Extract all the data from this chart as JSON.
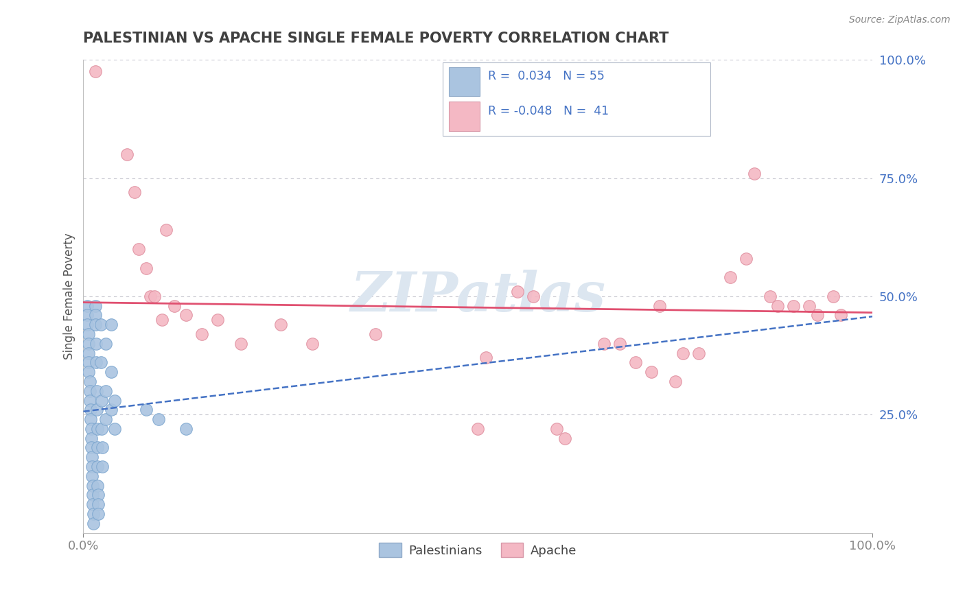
{
  "title": "PALESTINIAN VS APACHE SINGLE FEMALE POVERTY CORRELATION CHART",
  "source": "Source: ZipAtlas.com",
  "ylabel": "Single Female Poverty",
  "legend_labels": [
    "Palestinians",
    "Apache"
  ],
  "r_palestinian": 0.034,
  "n_palestinian": 55,
  "r_apache": -0.048,
  "n_apache": 41,
  "xlim": [
    0,
    1.0
  ],
  "ylim": [
    0,
    1.0
  ],
  "xtick_labels": [
    "0.0%",
    "100.0%"
  ],
  "ytick_labels": [
    "25.0%",
    "50.0%",
    "75.0%",
    "100.0%"
  ],
  "xtick_positions": [
    0.0,
    1.0
  ],
  "ytick_positions": [
    0.25,
    0.5,
    0.75,
    1.0
  ],
  "background_color": "#ffffff",
  "grid_color": "#c8c8d0",
  "palestinian_color": "#aac4e0",
  "apache_color": "#f4b8c4",
  "palestinian_line_color": "#4472c4",
  "apache_line_color": "#e05070",
  "watermark": "ZIPatlas",
  "watermark_color": "#dce6f0",
  "title_color": "#404040",
  "title_fontsize": 15,
  "legend_r_color": "#4472c4",
  "right_ytick_color": "#4472c4",
  "palestinian_points": [
    [
      0.005,
      0.48
    ],
    [
      0.005,
      0.46
    ],
    [
      0.005,
      0.44
    ],
    [
      0.007,
      0.42
    ],
    [
      0.007,
      0.4
    ],
    [
      0.007,
      0.38
    ],
    [
      0.007,
      0.36
    ],
    [
      0.007,
      0.34
    ],
    [
      0.008,
      0.32
    ],
    [
      0.008,
      0.3
    ],
    [
      0.008,
      0.28
    ],
    [
      0.009,
      0.26
    ],
    [
      0.009,
      0.24
    ],
    [
      0.01,
      0.22
    ],
    [
      0.01,
      0.2
    ],
    [
      0.01,
      0.18
    ],
    [
      0.011,
      0.16
    ],
    [
      0.011,
      0.14
    ],
    [
      0.011,
      0.12
    ],
    [
      0.012,
      0.1
    ],
    [
      0.012,
      0.08
    ],
    [
      0.012,
      0.06
    ],
    [
      0.013,
      0.04
    ],
    [
      0.013,
      0.02
    ],
    [
      0.015,
      0.48
    ],
    [
      0.015,
      0.46
    ],
    [
      0.015,
      0.44
    ],
    [
      0.016,
      0.4
    ],
    [
      0.016,
      0.36
    ],
    [
      0.017,
      0.3
    ],
    [
      0.017,
      0.26
    ],
    [
      0.018,
      0.22
    ],
    [
      0.018,
      0.18
    ],
    [
      0.018,
      0.14
    ],
    [
      0.018,
      0.1
    ],
    [
      0.019,
      0.08
    ],
    [
      0.019,
      0.06
    ],
    [
      0.019,
      0.04
    ],
    [
      0.022,
      0.44
    ],
    [
      0.022,
      0.36
    ],
    [
      0.023,
      0.28
    ],
    [
      0.023,
      0.22
    ],
    [
      0.024,
      0.18
    ],
    [
      0.024,
      0.14
    ],
    [
      0.028,
      0.4
    ],
    [
      0.028,
      0.3
    ],
    [
      0.028,
      0.24
    ],
    [
      0.035,
      0.44
    ],
    [
      0.035,
      0.34
    ],
    [
      0.035,
      0.26
    ],
    [
      0.04,
      0.28
    ],
    [
      0.04,
      0.22
    ],
    [
      0.08,
      0.26
    ],
    [
      0.095,
      0.24
    ],
    [
      0.13,
      0.22
    ]
  ],
  "apache_points": [
    [
      0.015,
      0.975
    ],
    [
      0.055,
      0.8
    ],
    [
      0.065,
      0.72
    ],
    [
      0.07,
      0.6
    ],
    [
      0.08,
      0.56
    ],
    [
      0.085,
      0.5
    ],
    [
      0.09,
      0.5
    ],
    [
      0.1,
      0.45
    ],
    [
      0.105,
      0.64
    ],
    [
      0.115,
      0.48
    ],
    [
      0.13,
      0.46
    ],
    [
      0.15,
      0.42
    ],
    [
      0.17,
      0.45
    ],
    [
      0.2,
      0.4
    ],
    [
      0.25,
      0.44
    ],
    [
      0.29,
      0.4
    ],
    [
      0.37,
      0.42
    ],
    [
      0.5,
      0.22
    ],
    [
      0.51,
      0.37
    ],
    [
      0.55,
      0.51
    ],
    [
      0.57,
      0.5
    ],
    [
      0.6,
      0.22
    ],
    [
      0.61,
      0.2
    ],
    [
      0.66,
      0.4
    ],
    [
      0.68,
      0.4
    ],
    [
      0.7,
      0.36
    ],
    [
      0.72,
      0.34
    ],
    [
      0.73,
      0.48
    ],
    [
      0.75,
      0.32
    ],
    [
      0.76,
      0.38
    ],
    [
      0.78,
      0.38
    ],
    [
      0.82,
      0.54
    ],
    [
      0.84,
      0.58
    ],
    [
      0.85,
      0.76
    ],
    [
      0.87,
      0.5
    ],
    [
      0.88,
      0.48
    ],
    [
      0.9,
      0.48
    ],
    [
      0.92,
      0.48
    ],
    [
      0.93,
      0.46
    ],
    [
      0.95,
      0.5
    ],
    [
      0.96,
      0.46
    ]
  ]
}
